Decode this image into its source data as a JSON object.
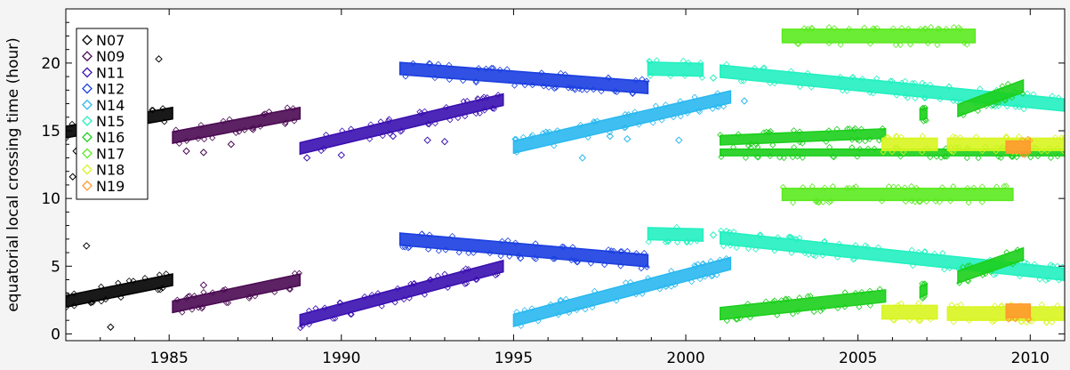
{
  "chart_data": {
    "type": "scatter",
    "title": "",
    "xlabel": "",
    "ylabel": "equatorial local crossing time (hour)",
    "xlim": [
      1982.0,
      2011.0
    ],
    "ylim": [
      -0.5,
      24.0
    ],
    "x_ticks": [
      1985,
      1990,
      1995,
      2000,
      2005,
      2010
    ],
    "x_tick_labels": [
      "1985",
      "1990",
      "1995",
      "2000",
      "2005",
      "2010"
    ],
    "y_ticks": [
      0,
      5,
      10,
      15,
      20
    ],
    "y_tick_labels": [
      "0",
      "5",
      "10",
      "15",
      "20"
    ],
    "grid": false,
    "legend_position": "top-left",
    "marker": "diamond",
    "series": [
      {
        "name": "N07",
        "color": "#000000",
        "tracks": [
          {
            "x": [
              1982.0,
              1985.1
            ],
            "y": [
              14.9,
              16.3
            ],
            "spread": 0.85
          },
          {
            "x": [
              1982.0,
              1985.1
            ],
            "y": [
              2.4,
              4.0
            ],
            "spread": 0.85
          }
        ],
        "outliers": [
          {
            "x": 1984.7,
            "y": 20.3
          },
          {
            "x": 1982.2,
            "y": 11.6
          },
          {
            "x": 1982.6,
            "y": 6.5
          },
          {
            "x": 1983.3,
            "y": 0.5
          },
          {
            "x": 1982.3,
            "y": 13.5
          },
          {
            "x": 1983.0,
            "y": 13.8
          },
          {
            "x": 1984.0,
            "y": 14.0
          }
        ]
      },
      {
        "name": "N09",
        "color": "#4a0a52",
        "tracks": [
          {
            "x": [
              1985.1,
              1988.8
            ],
            "y": [
              14.5,
              16.3
            ],
            "spread": 0.85
          },
          {
            "x": [
              1985.1,
              1988.8
            ],
            "y": [
              2.0,
              4.0
            ],
            "spread": 0.85
          }
        ],
        "outliers": [
          {
            "x": 1985.5,
            "y": 13.5
          },
          {
            "x": 1986.0,
            "y": 13.4
          },
          {
            "x": 1986.8,
            "y": 14.0
          },
          {
            "x": 1986.0,
            "y": 3.6
          }
        ]
      },
      {
        "name": "N11",
        "color": "#3a0fb0",
        "tracks": [
          {
            "x": [
              1988.8,
              1994.7
            ],
            "y": [
              13.7,
              17.3
            ],
            "spread": 0.85
          },
          {
            "x": [
              1988.8,
              1994.7
            ],
            "y": [
              1.0,
              5.0
            ],
            "spread": 0.85
          }
        ],
        "outliers": [
          {
            "x": 1989.0,
            "y": 13.0
          },
          {
            "x": 1990.0,
            "y": 13.2
          },
          {
            "x": 1991.5,
            "y": 14.6
          },
          {
            "x": 1992.5,
            "y": 14.3
          },
          {
            "x": 1993.0,
            "y": 14.2
          }
        ]
      },
      {
        "name": "N12",
        "color": "#1a3ee0",
        "tracks": [
          {
            "x": [
              1991.7,
              1998.9
            ],
            "y": [
              19.6,
              18.2
            ],
            "spread": 0.9
          },
          {
            "x": [
              1991.7,
              1998.9
            ],
            "y": [
              7.0,
              5.4
            ],
            "spread": 0.9
          }
        ],
        "outliers": [
          {
            "x": 1995.2,
            "y": 5.6
          }
        ]
      },
      {
        "name": "N14",
        "color": "#2ab8f0",
        "tracks": [
          {
            "x": [
              1995.0,
              2001.3
            ],
            "y": [
              13.8,
              17.5
            ],
            "spread": 0.9
          },
          {
            "x": [
              1995.0,
              2001.3
            ],
            "y": [
              1.0,
              5.2
            ],
            "spread": 0.9
          }
        ],
        "outliers": [
          {
            "x": 1997.8,
            "y": 14.6
          },
          {
            "x": 1998.3,
            "y": 14.4
          },
          {
            "x": 1999.8,
            "y": 14.3
          },
          {
            "x": 2001.7,
            "y": 17.2
          },
          {
            "x": 1997.0,
            "y": 13.0
          }
        ]
      },
      {
        "name": "N15",
        "color": "#22f0c0",
        "tracks": [
          {
            "x": [
              1998.9,
              2000.5
            ],
            "y": [
              19.6,
              19.5
            ],
            "spread": 0.95
          },
          {
            "x": [
              1998.9,
              2000.5
            ],
            "y": [
              7.4,
              7.3
            ],
            "spread": 0.9
          },
          {
            "x": [
              2001.0,
              2011.0
            ],
            "y": [
              19.4,
              16.9
            ],
            "spread": 0.9
          },
          {
            "x": [
              2001.0,
              2011.0
            ],
            "y": [
              7.1,
              4.4
            ],
            "spread": 0.9
          }
        ],
        "outliers": [
          {
            "x": 2000.8,
            "y": 18.9
          },
          {
            "x": 2000.8,
            "y": 7.3
          }
        ]
      },
      {
        "name": "N16",
        "color": "#1ccf1c",
        "tracks": [
          {
            "x": [
              2001.0,
              2005.8
            ],
            "y": [
              14.3,
              14.8
            ],
            "spread": 0.7
          },
          {
            "x": [
              2001.0,
              2011.0
            ],
            "y": [
              13.4,
              13.4
            ],
            "spread": 0.5
          },
          {
            "x": [
              2001.0,
              2005.8
            ],
            "y": [
              1.5,
              2.8
            ],
            "spread": 0.9
          },
          {
            "x": [
              2007.9,
              2009.8
            ],
            "y": [
              16.5,
              18.3
            ],
            "spread": 0.9
          },
          {
            "x": [
              2007.9,
              2009.8
            ],
            "y": [
              4.2,
              5.9
            ],
            "spread": 0.9
          },
          {
            "x": [
              2006.8,
              2007.0
            ],
            "y": [
              16.2,
              16.3
            ],
            "spread": 0.8
          },
          {
            "x": [
              2006.8,
              2007.0
            ],
            "y": [
              3.1,
              3.3
            ],
            "spread": 0.8
          }
        ],
        "outliers": []
      },
      {
        "name": "N17",
        "color": "#5bea1f",
        "tracks": [
          {
            "x": [
              2002.8,
              2008.4
            ],
            "y": [
              22.0,
              22.0
            ],
            "spread": 1.0
          },
          {
            "x": [
              2002.8,
              2009.5
            ],
            "y": [
              10.3,
              10.3
            ],
            "spread": 0.9
          }
        ],
        "outliers": []
      },
      {
        "name": "N18",
        "color": "#d8f51f",
        "tracks": [
          {
            "x": [
              2005.7,
              2007.3
            ],
            "y": [
              14.0,
              14.0
            ],
            "spread": 0.9
          },
          {
            "x": [
              2007.6,
              2011.0
            ],
            "y": [
              14.0,
              14.0
            ],
            "spread": 0.9
          },
          {
            "x": [
              2005.7,
              2007.3
            ],
            "y": [
              1.6,
              1.6
            ],
            "spread": 1.0
          },
          {
            "x": [
              2007.6,
              2011.0
            ],
            "y": [
              1.5,
              1.5
            ],
            "spread": 1.0
          }
        ],
        "outliers": []
      },
      {
        "name": "N19",
        "color": "#ff9a2e",
        "tracks": [
          {
            "x": [
              2009.3,
              2010.0
            ],
            "y": [
              13.8,
              13.8
            ],
            "spread": 0.9
          },
          {
            "x": [
              2009.3,
              2010.0
            ],
            "y": [
              1.7,
              1.7
            ],
            "spread": 1.0
          }
        ],
        "outliers": []
      }
    ],
    "legend": [
      "N07",
      "N09",
      "N11",
      "N12",
      "N14",
      "N15",
      "N16",
      "N17",
      "N18",
      "N19"
    ]
  }
}
